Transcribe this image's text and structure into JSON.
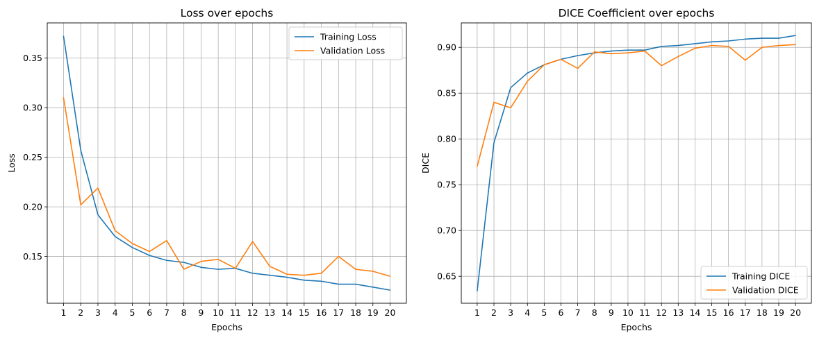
{
  "figure": {
    "colors": {
      "training": "#1f77b4",
      "validation": "#ff7f0e",
      "grid": "#b0b0b0"
    }
  },
  "chart_data": [
    {
      "type": "line",
      "title": "Loss over epochs",
      "xlabel": "Epochs",
      "ylabel": "Loss",
      "x": [
        1,
        2,
        3,
        4,
        5,
        6,
        7,
        8,
        9,
        10,
        11,
        12,
        13,
        14,
        15,
        16,
        17,
        18,
        19,
        20
      ],
      "x_tick_labels": [
        "1",
        "2",
        "3",
        "4",
        "5",
        "6",
        "7",
        "8",
        "9",
        "10",
        "11",
        "12",
        "13",
        "14",
        "15",
        "16",
        "17",
        "18",
        "19",
        "20"
      ],
      "xlim": [
        0.05,
        20.95
      ],
      "ylim": [
        0.1028,
        0.3855
      ],
      "yticks": [
        0.15,
        0.2,
        0.25,
        0.3,
        0.35
      ],
      "y_tick_labels": [
        "0.15",
        "0.20",
        "0.25",
        "0.30",
        "0.35"
      ],
      "grid": true,
      "legend_position": "upper right",
      "series": [
        {
          "name": "Training Loss",
          "color": "#1f77b4",
          "values": [
            0.372,
            0.257,
            0.192,
            0.17,
            0.159,
            0.151,
            0.146,
            0.144,
            0.139,
            0.137,
            0.138,
            0.133,
            0.131,
            0.129,
            0.126,
            0.125,
            0.122,
            0.122,
            0.119,
            0.116
          ]
        },
        {
          "name": "Validation Loss",
          "color": "#ff7f0e",
          "values": [
            0.31,
            0.202,
            0.219,
            0.176,
            0.163,
            0.155,
            0.166,
            0.137,
            0.145,
            0.147,
            0.138,
            0.165,
            0.14,
            0.132,
            0.131,
            0.133,
            0.15,
            0.137,
            0.135,
            0.13
          ]
        }
      ]
    },
    {
      "type": "line",
      "title": "DICE Coefficient over epochs",
      "xlabel": "Epochs",
      "ylabel": "DICE",
      "x": [
        1,
        2,
        3,
        4,
        5,
        6,
        7,
        8,
        9,
        10,
        11,
        12,
        13,
        14,
        15,
        16,
        17,
        18,
        19,
        20
      ],
      "x_tick_labels": [
        "1",
        "2",
        "3",
        "4",
        "5",
        "6",
        "7",
        "8",
        "9",
        "10",
        "11",
        "12",
        "13",
        "14",
        "15",
        "16",
        "17",
        "18",
        "19",
        "20"
      ],
      "xlim": [
        0.05,
        20.95
      ],
      "ylim": [
        0.6206,
        0.9267
      ],
      "yticks": [
        0.65,
        0.7,
        0.75,
        0.8,
        0.85,
        0.9
      ],
      "y_tick_labels": [
        "0.65",
        "0.70",
        "0.75",
        "0.80",
        "0.85",
        "0.90"
      ],
      "grid": true,
      "legend_position": "lower right",
      "series": [
        {
          "name": "Training DICE",
          "color": "#1f77b4",
          "values": [
            0.634,
            0.796,
            0.856,
            0.872,
            0.881,
            0.887,
            0.891,
            0.894,
            0.896,
            0.897,
            0.897,
            0.901,
            0.902,
            0.904,
            0.906,
            0.907,
            0.909,
            0.91,
            0.91,
            0.913
          ]
        },
        {
          "name": "Validation DICE",
          "color": "#ff7f0e",
          "values": [
            0.77,
            0.84,
            0.834,
            0.863,
            0.881,
            0.887,
            0.877,
            0.895,
            0.893,
            0.894,
            0.896,
            0.88,
            0.89,
            0.899,
            0.902,
            0.901,
            0.886,
            0.9,
            0.902,
            0.903
          ]
        }
      ]
    }
  ]
}
